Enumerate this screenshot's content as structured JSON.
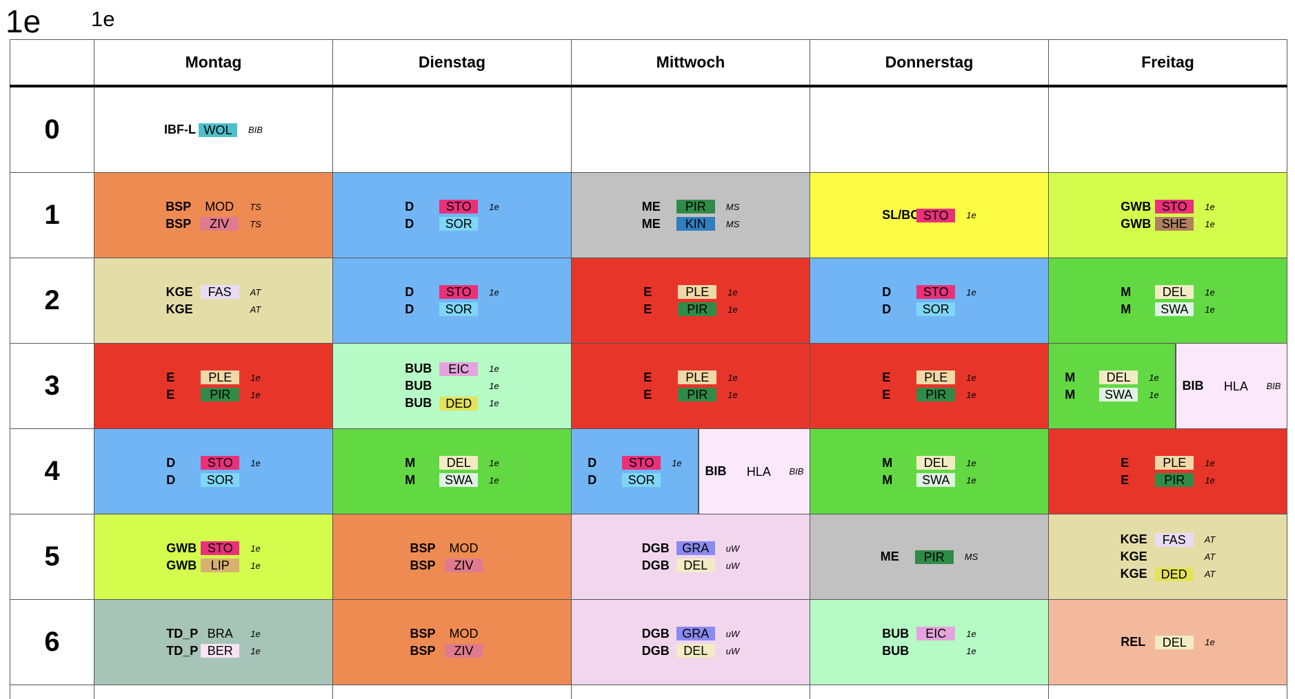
{
  "title_large": "1e",
  "title_small": "1e",
  "days": [
    "Montag",
    "Dienstag",
    "Mittwoch",
    "Donnerstag",
    "Freitag"
  ],
  "periods": [
    {
      "period": "0",
      "cells": [
        {
          "bg": "#ffffff",
          "lines": [
            {
              "subject": "IBF-L",
              "teacher": "WOL",
              "teacher_bg": "#4fbfc9",
              "room": "BIB"
            }
          ]
        },
        {
          "bg": "#ffffff",
          "lines": []
        },
        {
          "bg": "#ffffff",
          "lines": []
        },
        {
          "bg": "#ffffff",
          "lines": []
        },
        {
          "bg": "#ffffff",
          "lines": []
        }
      ]
    },
    {
      "period": "1",
      "cells": [
        {
          "bg": "#ee8b52",
          "lines": [
            {
              "subject": "BSP",
              "teacher": "MOD",
              "teacher_bg": "",
              "room": "TS"
            },
            {
              "subject": "BSP",
              "teacher": "ZIV",
              "teacher_bg": "#e07a8e",
              "room": "TS"
            }
          ]
        },
        {
          "bg": "#72b5f5",
          "lines": [
            {
              "subject": "D",
              "teacher": "STO",
              "teacher_bg": "#ea3079",
              "room": "1e"
            },
            {
              "subject": "D",
              "teacher": "SOR",
              "teacher_bg": "#7fd7f5",
              "room": ""
            }
          ]
        },
        {
          "bg": "#c1c1c1",
          "lines": [
            {
              "subject": "ME",
              "teacher": "PIR",
              "teacher_bg": "#2f8b47",
              "room": "MS"
            },
            {
              "subject": "ME",
              "teacher": "KIN",
              "teacher_bg": "#2f7fc0",
              "room": "MS"
            }
          ]
        },
        {
          "bg": "#fcfc45",
          "lines": [
            {
              "subject": "SL/BO",
              "teacher": "STO",
              "teacher_bg": "#ea3079",
              "room": "1e"
            }
          ]
        },
        {
          "bg": "#d4fc4d",
          "lines": [
            {
              "subject": "GWB",
              "teacher": "STO",
              "teacher_bg": "#ea3079",
              "room": "1e"
            },
            {
              "subject": "GWB",
              "teacher": "SHE",
              "teacher_bg": "#b08060",
              "room": "1e"
            }
          ]
        }
      ]
    },
    {
      "period": "2",
      "cells": [
        {
          "bg": "#e5dda8",
          "lines": [
            {
              "subject": "KGE",
              "teacher": "FAS",
              "teacher_bg": "#e8dcf5",
              "room": "AT"
            },
            {
              "subject": "KGE",
              "teacher": "",
              "teacher_bg": "",
              "room": "AT"
            }
          ]
        },
        {
          "bg": "#72b5f5",
          "lines": [
            {
              "subject": "D",
              "teacher": "STO",
              "teacher_bg": "#ea3079",
              "room": "1e"
            },
            {
              "subject": "D",
              "teacher": "SOR",
              "teacher_bg": "#7fd7f5",
              "room": ""
            }
          ]
        },
        {
          "bg": "#e8352a",
          "lines": [
            {
              "subject": "E",
              "teacher": "PLE",
              "teacher_bg": "#f1d9a7",
              "room": "1e"
            },
            {
              "subject": "E",
              "teacher": "PIR",
              "teacher_bg": "#2f8b47",
              "room": "1e"
            }
          ]
        },
        {
          "bg": "#72b5f5",
          "lines": [
            {
              "subject": "D",
              "teacher": "STO",
              "teacher_bg": "#ea3079",
              "room": "1e"
            },
            {
              "subject": "D",
              "teacher": "SOR",
              "teacher_bg": "#7fd7f5",
              "room": ""
            }
          ]
        },
        {
          "bg": "#62d943",
          "lines": [
            {
              "subject": "M",
              "teacher": "DEL",
              "teacher_bg": "#f1ecc3",
              "room": "1e"
            },
            {
              "subject": "M",
              "teacher": "SWA",
              "teacher_bg": "#dff2e3",
              "room": "1e"
            }
          ]
        }
      ]
    },
    {
      "period": "3",
      "cells": [
        {
          "bg": "#e8352a",
          "lines": [
            {
              "subject": "E",
              "teacher": "PLE",
              "teacher_bg": "#f1d9a7",
              "room": "1e"
            },
            {
              "subject": "E",
              "teacher": "PIR",
              "teacher_bg": "#2f8b47",
              "room": "1e"
            }
          ]
        },
        {
          "bg": "#b6fac6",
          "lines": [
            {
              "subject": "BUB",
              "teacher": "EIC",
              "teacher_bg": "#e5a3dd",
              "room": "1e"
            },
            {
              "subject": "BUB",
              "teacher": "",
              "teacher_bg": "",
              "room": "1e"
            },
            {
              "subject": "BUB",
              "teacher": "DED",
              "teacher_bg": "#e3e25a",
              "room": "1e"
            }
          ]
        },
        {
          "bg": "#e8352a",
          "lines": [
            {
              "subject": "E",
              "teacher": "PLE",
              "teacher_bg": "#f1d9a7",
              "room": "1e"
            },
            {
              "subject": "E",
              "teacher": "PIR",
              "teacher_bg": "#2f8b47",
              "room": "1e"
            }
          ]
        },
        {
          "bg": "#e8352a",
          "lines": [
            {
              "subject": "E",
              "teacher": "PLE",
              "teacher_bg": "#f1d9a7",
              "room": "1e"
            },
            {
              "subject": "E",
              "teacher": "PIR",
              "teacher_bg": "#2f8b47",
              "room": "1e"
            }
          ]
        },
        {
          "split": true,
          "left": {
            "bg": "#62d943",
            "lines": [
              {
                "subject": "M",
                "teacher": "DEL",
                "teacher_bg": "#f1ecc3",
                "room": "1e"
              },
              {
                "subject": "M",
                "teacher": "SWA",
                "teacher_bg": "#dff2e3",
                "room": "1e"
              }
            ]
          },
          "right": {
            "bg": "#fbe8fb",
            "lines": [
              {
                "subject": "BIB",
                "teacher": "HLA",
                "teacher_bg": "",
                "room": "BIB"
              }
            ]
          }
        }
      ]
    },
    {
      "period": "4",
      "cells": [
        {
          "bg": "#72b5f5",
          "lines": [
            {
              "subject": "D",
              "teacher": "STO",
              "teacher_bg": "#ea3079",
              "room": "1e"
            },
            {
              "subject": "D",
              "teacher": "SOR",
              "teacher_bg": "#7fd7f5",
              "room": ""
            }
          ]
        },
        {
          "bg": "#62d943",
          "lines": [
            {
              "subject": "M",
              "teacher": "DEL",
              "teacher_bg": "#f1ecc3",
              "room": "1e"
            },
            {
              "subject": "M",
              "teacher": "SWA",
              "teacher_bg": "#dff2e3",
              "room": "1e"
            }
          ]
        },
        {
          "split": true,
          "left": {
            "bg": "#72b5f5",
            "lines": [
              {
                "subject": "D",
                "teacher": "STO",
                "teacher_bg": "#ea3079",
                "room": "1e"
              },
              {
                "subject": "D",
                "teacher": "SOR",
                "teacher_bg": "#7fd7f5",
                "room": ""
              }
            ]
          },
          "right": {
            "bg": "#fbe8fb",
            "lines": [
              {
                "subject": "BIB",
                "teacher": "HLA",
                "teacher_bg": "",
                "room": "BIB"
              }
            ]
          }
        },
        {
          "bg": "#62d943",
          "lines": [
            {
              "subject": "M",
              "teacher": "DEL",
              "teacher_bg": "#f1ecc3",
              "room": "1e"
            },
            {
              "subject": "M",
              "teacher": "SWA",
              "teacher_bg": "#dff2e3",
              "room": "1e"
            }
          ]
        },
        {
          "bg": "#e8352a",
          "lines": [
            {
              "subject": "E",
              "teacher": "PLE",
              "teacher_bg": "#f1d9a7",
              "room": "1e"
            },
            {
              "subject": "E",
              "teacher": "PIR",
              "teacher_bg": "#2f8b47",
              "room": "1e"
            }
          ]
        }
      ]
    },
    {
      "period": "5",
      "cells": [
        {
          "bg": "#d4fc4d",
          "lines": [
            {
              "subject": "GWB",
              "teacher": "STO",
              "teacher_bg": "#ea3079",
              "room": "1e"
            },
            {
              "subject": "GWB",
              "teacher": "LIP",
              "teacher_bg": "#d8b070",
              "room": "1e"
            }
          ]
        },
        {
          "bg": "#ee8b52",
          "lines": [
            {
              "subject": "BSP",
              "teacher": "MOD",
              "teacher_bg": "",
              "room": ""
            },
            {
              "subject": "BSP",
              "teacher": "ZIV",
              "teacher_bg": "#e07a8e",
              "room": ""
            }
          ]
        },
        {
          "bg": "#f1d6ed",
          "lines": [
            {
              "subject": "DGB",
              "teacher": "GRA",
              "teacher_bg": "#8a8af0",
              "room": "uW"
            },
            {
              "subject": "DGB",
              "teacher": "DEL",
              "teacher_bg": "#f1ecc3",
              "room": "uW"
            }
          ]
        },
        {
          "bg": "#c1c1c1",
          "lines": [
            {
              "subject": "ME",
              "teacher": "PIR",
              "teacher_bg": "#2f8b47",
              "room": "MS"
            }
          ]
        },
        {
          "bg": "#e5dda8",
          "lines": [
            {
              "subject": "KGE",
              "teacher": "FAS",
              "teacher_bg": "#e8dcf5",
              "room": "AT"
            },
            {
              "subject": "KGE",
              "teacher": "",
              "teacher_bg": "",
              "room": "AT"
            },
            {
              "subject": "KGE",
              "teacher": "DED",
              "teacher_bg": "#e3e25a",
              "room": "AT"
            }
          ]
        }
      ]
    },
    {
      "period": "6",
      "cells": [
        {
          "bg": "#a7c4b9",
          "lines": [
            {
              "subject": "TD_P",
              "teacher": "BRA",
              "teacher_bg": "",
              "room": "1e"
            },
            {
              "subject": "TD_P",
              "teacher": "BER",
              "teacher_bg": "#f8e3f3",
              "room": "1e"
            }
          ]
        },
        {
          "bg": "#ee8b52",
          "lines": [
            {
              "subject": "BSP",
              "teacher": "MOD",
              "teacher_bg": "",
              "room": ""
            },
            {
              "subject": "BSP",
              "teacher": "ZIV",
              "teacher_bg": "#e07a8e",
              "room": ""
            }
          ]
        },
        {
          "bg": "#f1d6ed",
          "lines": [
            {
              "subject": "DGB",
              "teacher": "GRA",
              "teacher_bg": "#8a8af0",
              "room": "uW"
            },
            {
              "subject": "DGB",
              "teacher": "DEL",
              "teacher_bg": "#f1ecc3",
              "room": "uW"
            }
          ]
        },
        {
          "bg": "#b6fac6",
          "lines": [
            {
              "subject": "BUB",
              "teacher": "EIC",
              "teacher_bg": "#e5a3dd",
              "room": "1e"
            },
            {
              "subject": "BUB",
              "teacher": "",
              "teacher_bg": "",
              "room": "1e"
            }
          ]
        },
        {
          "bg": "#f2b99d",
          "lines": [
            {
              "subject": "REL",
              "teacher": "DEL",
              "teacher_bg": "#f1ecc3",
              "room": "1e"
            }
          ]
        }
      ]
    }
  ]
}
